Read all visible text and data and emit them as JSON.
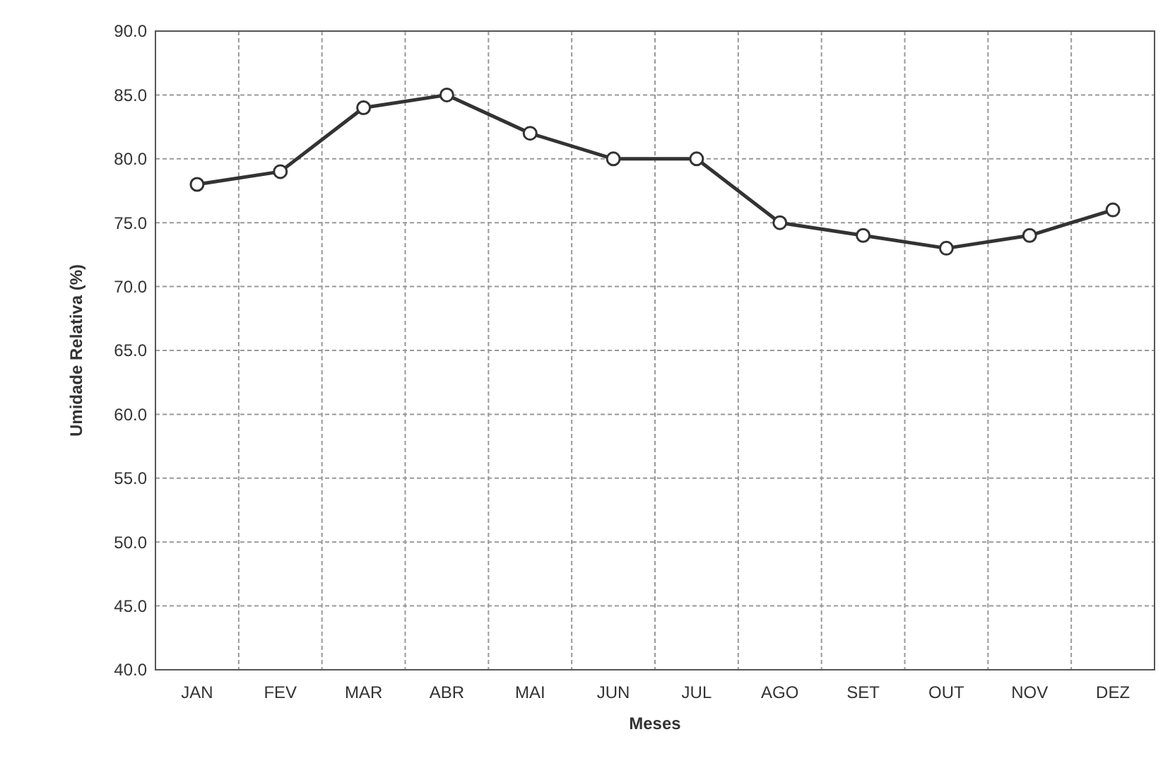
{
  "chart_data": {
    "type": "line",
    "xlabel": "Meses",
    "ylabel": "Umidade Relativa (%)",
    "categories": [
      "JAN",
      "FEV",
      "MAR",
      "ABR",
      "MAI",
      "JUN",
      "JUL",
      "AGO",
      "SET",
      "OUT",
      "NOV",
      "DEZ"
    ],
    "series": [
      {
        "color": "#333333",
        "values": [
          78,
          79,
          84,
          85,
          82,
          80,
          80,
          75,
          74,
          73,
          74,
          76
        ]
      }
    ],
    "ylim": [
      40,
      90
    ],
    "yticks": [
      {
        "value": 40,
        "label": "40.0"
      },
      {
        "value": 45,
        "label": "45.0"
      },
      {
        "value": 50,
        "label": "50.0"
      },
      {
        "value": 55,
        "label": "55.0"
      },
      {
        "value": 60,
        "label": "60.0"
      },
      {
        "value": 65,
        "label": "65.0"
      },
      {
        "value": 70,
        "label": "70.0"
      },
      {
        "value": 75,
        "label": "75.0"
      },
      {
        "value": 80,
        "label": "80.0"
      },
      {
        "value": 85,
        "label": "85.0"
      },
      {
        "value": 90,
        "label": "90.0"
      }
    ],
    "grid": true,
    "marker": "circle"
  }
}
